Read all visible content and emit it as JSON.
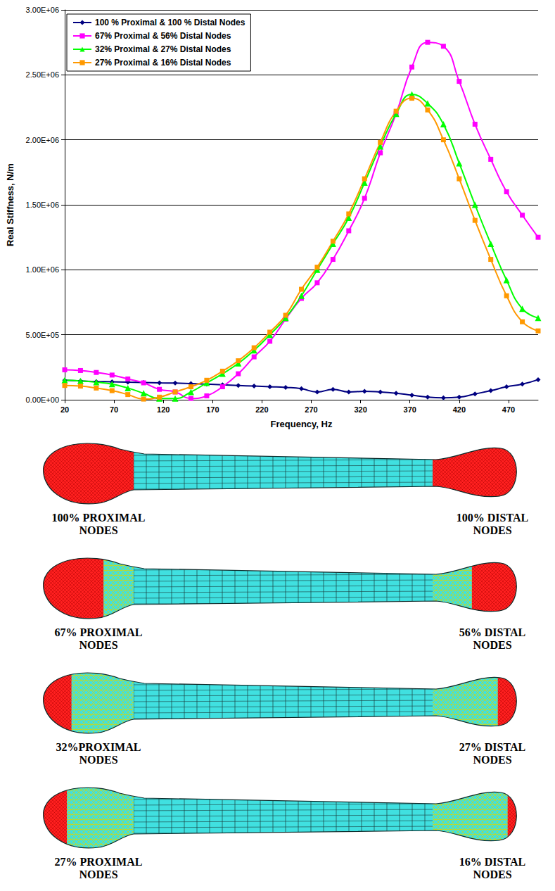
{
  "chart_data": {
    "type": "line",
    "x_label": "Frequency, Hz",
    "y_label": "Real Stiffness, N/m",
    "x": [
      20,
      36,
      52,
      68,
      84,
      100,
      116,
      132,
      148,
      164,
      180,
      196,
      212,
      228,
      244,
      260,
      276,
      292,
      308,
      324,
      340,
      356,
      372,
      388,
      404,
      420,
      436,
      452,
      468,
      484,
      500
    ],
    "xlim": [
      20,
      500
    ],
    "xticks": [
      20,
      70,
      120,
      170,
      220,
      270,
      320,
      370,
      420,
      470
    ],
    "ylim": [
      0,
      3000000
    ],
    "yticks": [
      {
        "value": 0,
        "label": "0.00E+00"
      },
      {
        "value": 500000,
        "label": "5.00E+05"
      },
      {
        "value": 1000000,
        "label": "1.00E+06"
      },
      {
        "value": 1500000,
        "label": "1.50E+06"
      },
      {
        "value": 2000000,
        "label": "2.00E+06"
      },
      {
        "value": 2500000,
        "label": "2.50E+06"
      },
      {
        "value": 3000000,
        "label": "3.00E+06"
      }
    ],
    "grid": true,
    "legend": "upper left",
    "series": [
      {
        "name": "100 % Proximal & 100 % Distal Nodes",
        "color": "#000080",
        "marker": "diamond",
        "line_style": "solid",
        "values": [
          150000,
          145000,
          140000,
          138000,
          135000,
          133000,
          130000,
          128000,
          125000,
          120000,
          115000,
          110000,
          105000,
          100000,
          95000,
          85000,
          60000,
          80000,
          60000,
          65000,
          60000,
          50000,
          35000,
          20000,
          15000,
          20000,
          45000,
          70000,
          100000,
          120000,
          155000
        ]
      },
      {
        "name": "67% Proximal & 56% Distal Nodes",
        "color": "#ff00ff",
        "marker": "square",
        "line_style": "solid",
        "values": [
          230000,
          225000,
          210000,
          190000,
          160000,
          130000,
          80000,
          60000,
          10000,
          30000,
          100000,
          200000,
          330000,
          450000,
          620000,
          780000,
          900000,
          1080000,
          1300000,
          1550000,
          1900000,
          2200000,
          2560000,
          2750000,
          2720000,
          2450000,
          2120000,
          1850000,
          1600000,
          1420000,
          1250000
        ]
      },
      {
        "name": "32% Proximal & 27% Distal Nodes",
        "color": "#00ff00",
        "marker": "triangle",
        "line_style": "solid",
        "values": [
          150000,
          145000,
          135000,
          120000,
          90000,
          50000,
          10000,
          10000,
          60000,
          130000,
          200000,
          280000,
          380000,
          500000,
          630000,
          800000,
          1000000,
          1200000,
          1400000,
          1670000,
          1950000,
          2200000,
          2350000,
          2280000,
          2120000,
          1820000,
          1500000,
          1200000,
          920000,
          700000,
          630000
        ]
      },
      {
        "name": "27% Proximal & 16% Distal Nodes",
        "color": "#ff9900",
        "marker": "square",
        "line_style": "solid",
        "values": [
          110000,
          105000,
          90000,
          70000,
          40000,
          5000,
          20000,
          60000,
          100000,
          150000,
          220000,
          300000,
          400000,
          520000,
          650000,
          850000,
          1020000,
          1220000,
          1430000,
          1700000,
          1980000,
          2220000,
          2320000,
          2230000,
          2000000,
          1700000,
          1380000,
          1080000,
          800000,
          600000,
          530000
        ]
      }
    ]
  },
  "diagram": {
    "panels": [
      {
        "proximal_label": "100% PROXIMAL NODES",
        "distal_label": "100% DISTAL NODES"
      },
      {
        "proximal_label": "67% PROXIMAL NODES",
        "distal_label": "56% DISTAL NODES"
      },
      {
        "proximal_label": "32%PROXIMAL NODES",
        "distal_label": "27% DISTAL NODES"
      },
      {
        "proximal_label": "27% PROXIMAL NODES",
        "distal_label": "16% DISTAL NODES"
      }
    ]
  }
}
